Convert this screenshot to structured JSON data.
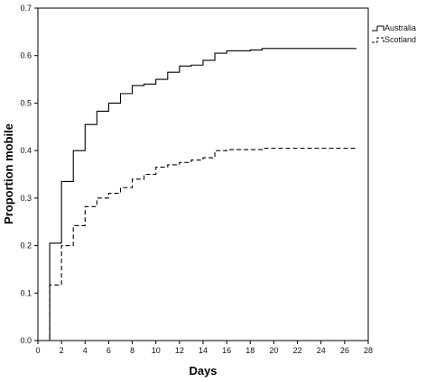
{
  "chart_data": {
    "type": "line",
    "step": true,
    "xlabel": "Days",
    "ylabel": "Proportion mobile",
    "xlim": [
      0,
      28
    ],
    "ylim": [
      0.0,
      0.7
    ],
    "xticks": [
      0,
      2,
      4,
      6,
      8,
      10,
      12,
      14,
      16,
      18,
      20,
      22,
      24,
      26,
      28
    ],
    "yticks": [
      "0.0",
      "0.1",
      "0.2",
      "0.3",
      "0.4",
      "0.5",
      "0.6",
      "0.7"
    ],
    "grid": false,
    "legend_position": "top-right",
    "series": [
      {
        "name": "Australia",
        "style": "solid",
        "color": "#000000",
        "points": [
          [
            0,
            0.0
          ],
          [
            1,
            0.205
          ],
          [
            2,
            0.335
          ],
          [
            3,
            0.4
          ],
          [
            4,
            0.455
          ],
          [
            5,
            0.483
          ],
          [
            6,
            0.5
          ],
          [
            7,
            0.52
          ],
          [
            8,
            0.537
          ],
          [
            9,
            0.54
          ],
          [
            10,
            0.55
          ],
          [
            11,
            0.565
          ],
          [
            12,
            0.578
          ],
          [
            13,
            0.58
          ],
          [
            14,
            0.59
          ],
          [
            15,
            0.605
          ],
          [
            16,
            0.61
          ],
          [
            18,
            0.612
          ],
          [
            19,
            0.615
          ],
          [
            27,
            0.615
          ]
        ]
      },
      {
        "name": "Scotland",
        "style": "dashed",
        "color": "#000000",
        "points": [
          [
            0,
            0.0
          ],
          [
            1,
            0.117
          ],
          [
            2,
            0.2
          ],
          [
            3,
            0.242
          ],
          [
            4,
            0.282
          ],
          [
            5,
            0.3
          ],
          [
            6,
            0.31
          ],
          [
            7,
            0.322
          ],
          [
            8,
            0.34
          ],
          [
            9,
            0.35
          ],
          [
            10,
            0.365
          ],
          [
            11,
            0.37
          ],
          [
            12,
            0.375
          ],
          [
            13,
            0.38
          ],
          [
            14,
            0.385
          ],
          [
            15,
            0.4
          ],
          [
            16,
            0.402
          ],
          [
            19,
            0.405
          ],
          [
            27,
            0.406
          ]
        ]
      }
    ]
  }
}
